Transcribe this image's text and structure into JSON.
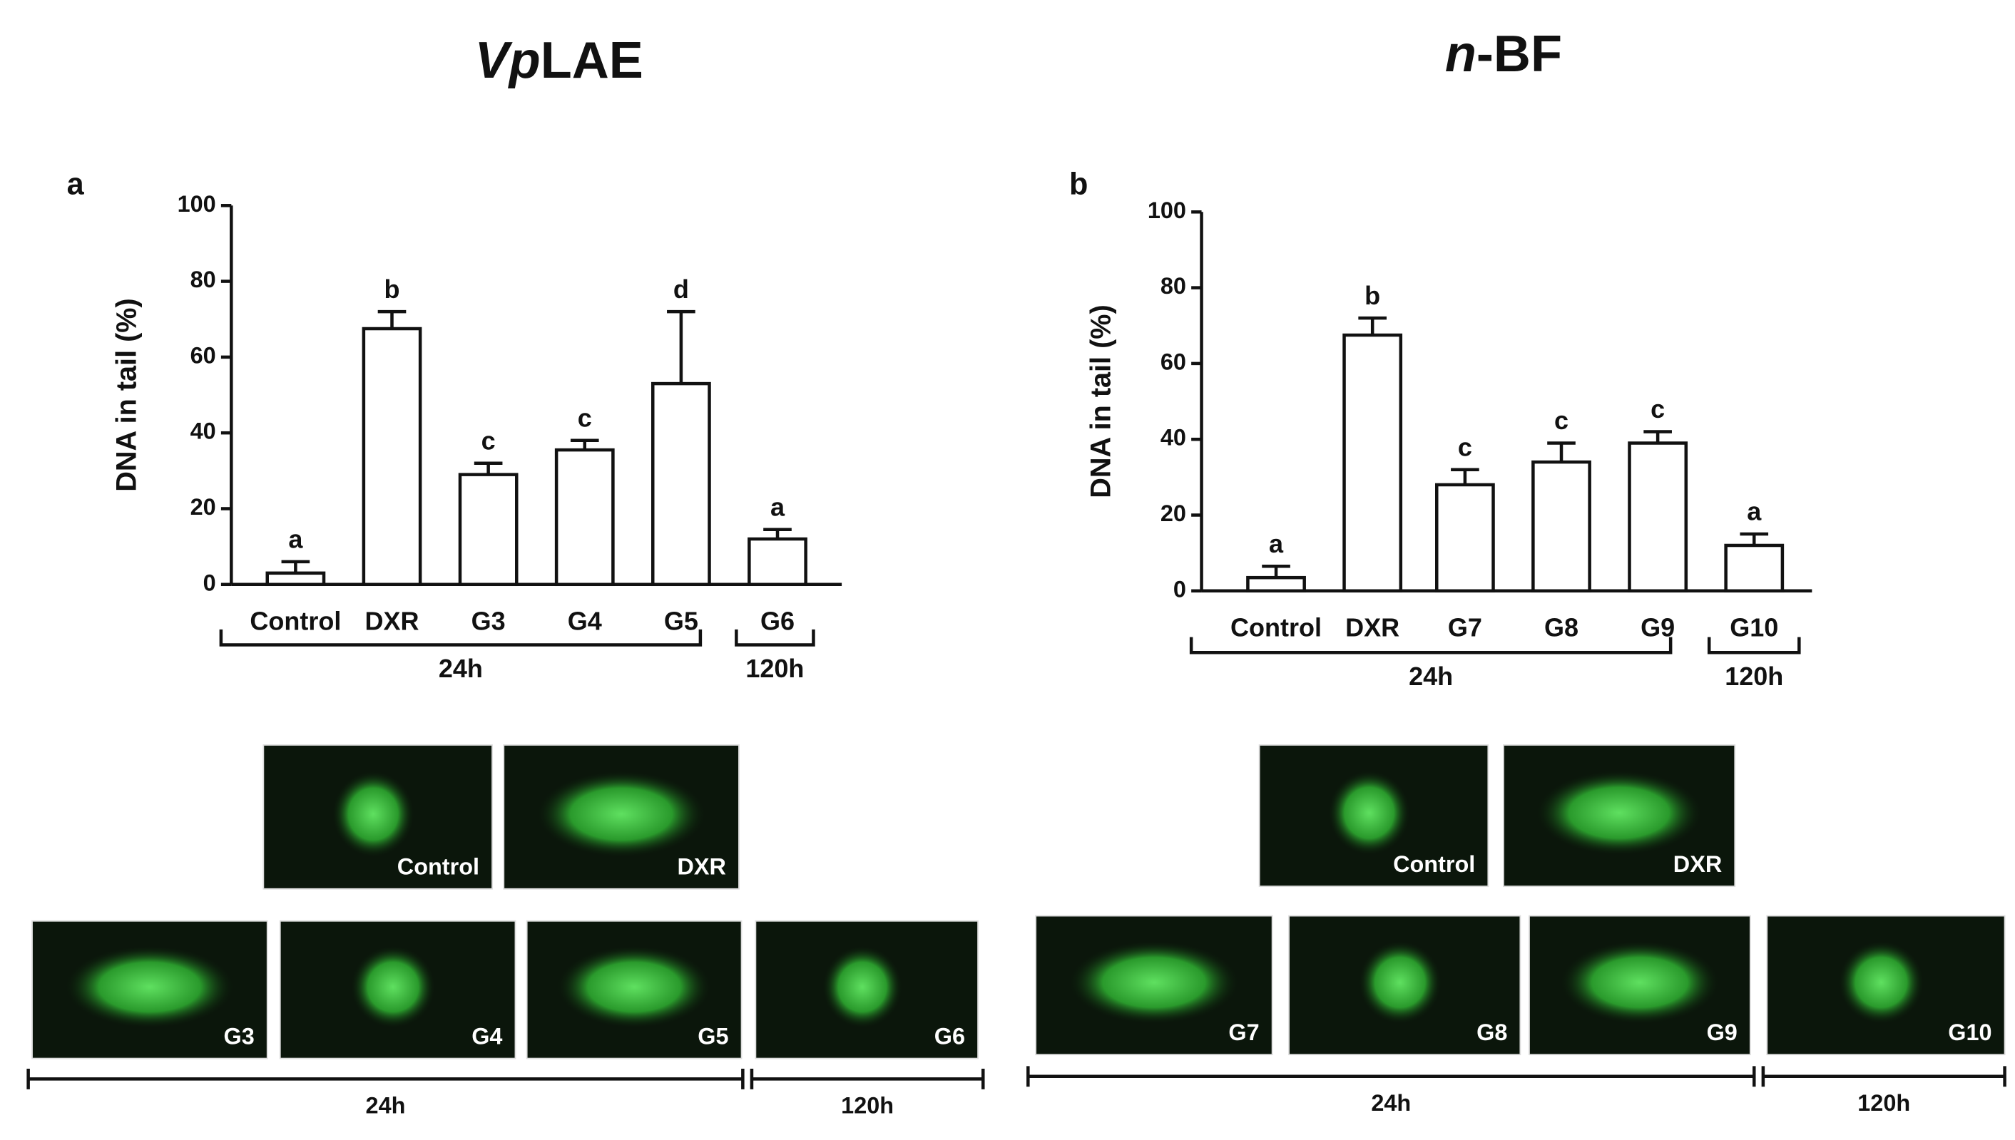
{
  "chart_data": [
    {
      "type": "bar",
      "panel": "a",
      "title": {
        "italic": "Vp",
        "regular": "LAE"
      },
      "ylabel": "DNA in tail (%)",
      "categories": [
        "Control",
        "DXR",
        "G3",
        "G4",
        "G5",
        "G6"
      ],
      "values": [
        3,
        67.5,
        29,
        35.5,
        53,
        12
      ],
      "errors": [
        3,
        4.5,
        3,
        2.5,
        19,
        2.5
      ],
      "letters": [
        "a",
        "b",
        "c",
        "c",
        "d",
        "a"
      ],
      "groups": [
        "24h",
        "120h"
      ],
      "ylim": [
        0,
        100
      ],
      "yticks": [
        0,
        20,
        40,
        60,
        80,
        100
      ],
      "color": "#ffffff"
    },
    {
      "type": "bar",
      "panel": "b",
      "title": {
        "italic": "n",
        "regular": "-BF"
      },
      "ylabel": "DNA in tail (%)",
      "categories": [
        "Control",
        "DXR",
        "G7",
        "G8",
        "G9",
        "G10"
      ],
      "values": [
        3.5,
        67.5,
        28,
        34,
        39,
        12
      ],
      "errors": [
        3,
        4.5,
        4,
        5,
        3,
        3
      ],
      "letters": [
        "a",
        "b",
        "c",
        "c",
        "c",
        "a"
      ],
      "groups": [
        "24h",
        "120h"
      ],
      "ylim": [
        0,
        100
      ],
      "yticks": [
        0,
        20,
        40,
        60,
        80,
        100
      ],
      "color": "#ffffff"
    }
  ],
  "micrographs": [
    {
      "top": [
        "Control",
        "DXR"
      ],
      "bottom": [
        "G3",
        "G4",
        "G5",
        "G6"
      ],
      "periods": [
        "24h",
        "120h"
      ]
    },
    {
      "top": [
        "Control",
        "DXR"
      ],
      "bottom": [
        "G7",
        "G8",
        "G9",
        "G10"
      ],
      "periods": [
        "24h",
        "120h"
      ]
    }
  ]
}
